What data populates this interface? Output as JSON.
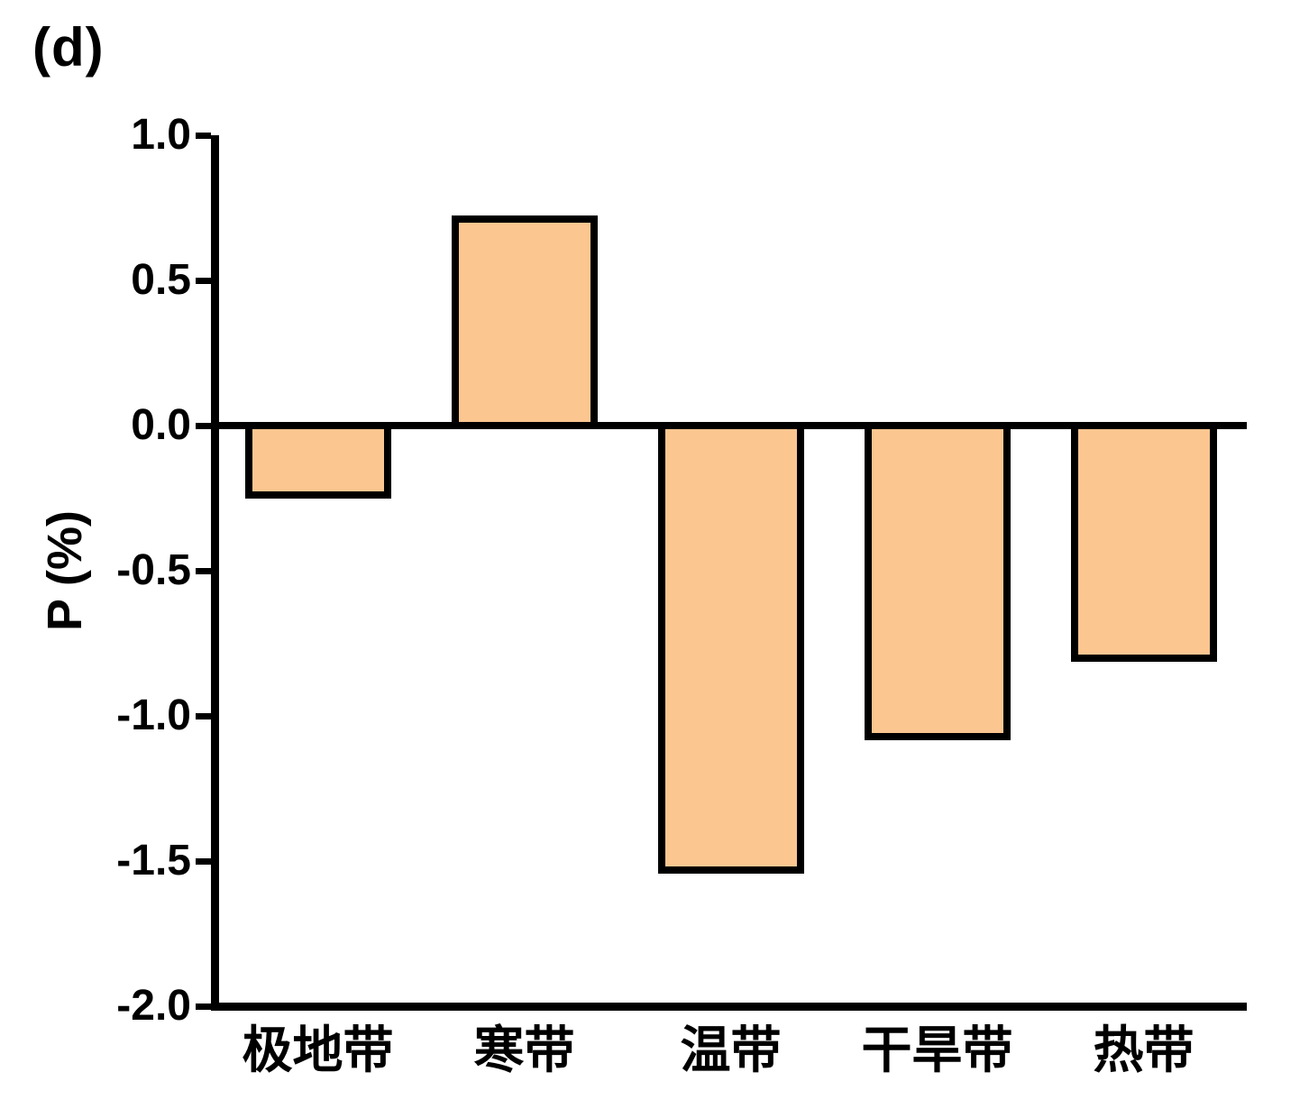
{
  "panel_label": "(d)",
  "colors": {
    "bar_fill": "#FCC690",
    "bar_border": "#000000",
    "axis": "#000000",
    "background": "#FFFFFF"
  },
  "chart_data": {
    "type": "bar",
    "title": "",
    "categories": [
      "极地带",
      "寒带",
      "温带",
      "干旱带",
      "热带"
    ],
    "values": [
      -0.24,
      0.71,
      -1.53,
      -1.07,
      -0.8
    ],
    "xlabel": "",
    "ylabel": "P (%)",
    "ylim": [
      -2.0,
      1.0
    ],
    "yticks": [
      1.0,
      0.5,
      0.0,
      -0.5,
      -1.0,
      -1.5,
      -2.0
    ],
    "ytick_labels": [
      "1.0",
      "0.5",
      "0.0",
      "-0.5",
      "-1.0",
      "-1.5",
      "-2.0"
    ],
    "baseline": 0.0,
    "grid": false,
    "legend": null
  }
}
